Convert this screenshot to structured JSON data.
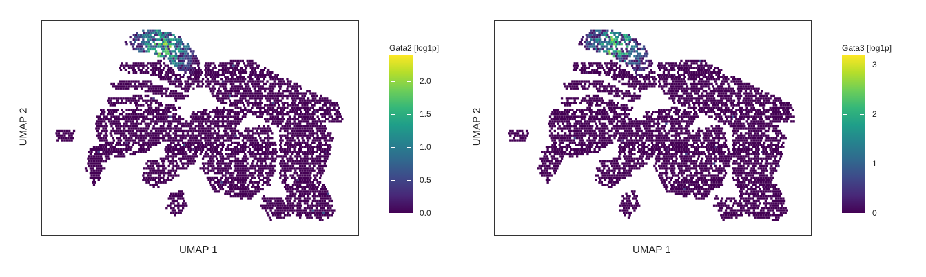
{
  "chart_data": [
    {
      "type": "scatter",
      "subtype": "hexbin-embedding",
      "xlabel": "UMAP 1",
      "ylabel": "UMAP 2",
      "colorbar": {
        "title": "Gata2 [log1p]",
        "range": [
          0,
          2.4
        ],
        "ticks": [
          "0.0",
          "0.5",
          "1.0",
          "1.5",
          "2.0"
        ],
        "tick_values": [
          0,
          0.5,
          1.0,
          1.5,
          2.0
        ],
        "colormap": "viridis"
      },
      "grid": false,
      "axis_ticks": false,
      "high_expression_region": "upper-left lobe",
      "max_value_shown": 2.3
    },
    {
      "type": "scatter",
      "subtype": "hexbin-embedding",
      "xlabel": "UMAP 1",
      "ylabel": "UMAP 2",
      "colorbar": {
        "title": "Gata3 [log1p]",
        "range": [
          0,
          3.2
        ],
        "ticks": [
          "0",
          "1",
          "2",
          "3"
        ],
        "tick_values": [
          0,
          1,
          2,
          3
        ],
        "colormap": "viridis"
      },
      "grid": false,
      "axis_ticks": false,
      "high_expression_region": "upper-left lobe",
      "max_value_shown": 3.0
    }
  ],
  "colors": {
    "viridis_low": "#440154",
    "viridis_high": "#fde725",
    "frame": "#333333"
  }
}
